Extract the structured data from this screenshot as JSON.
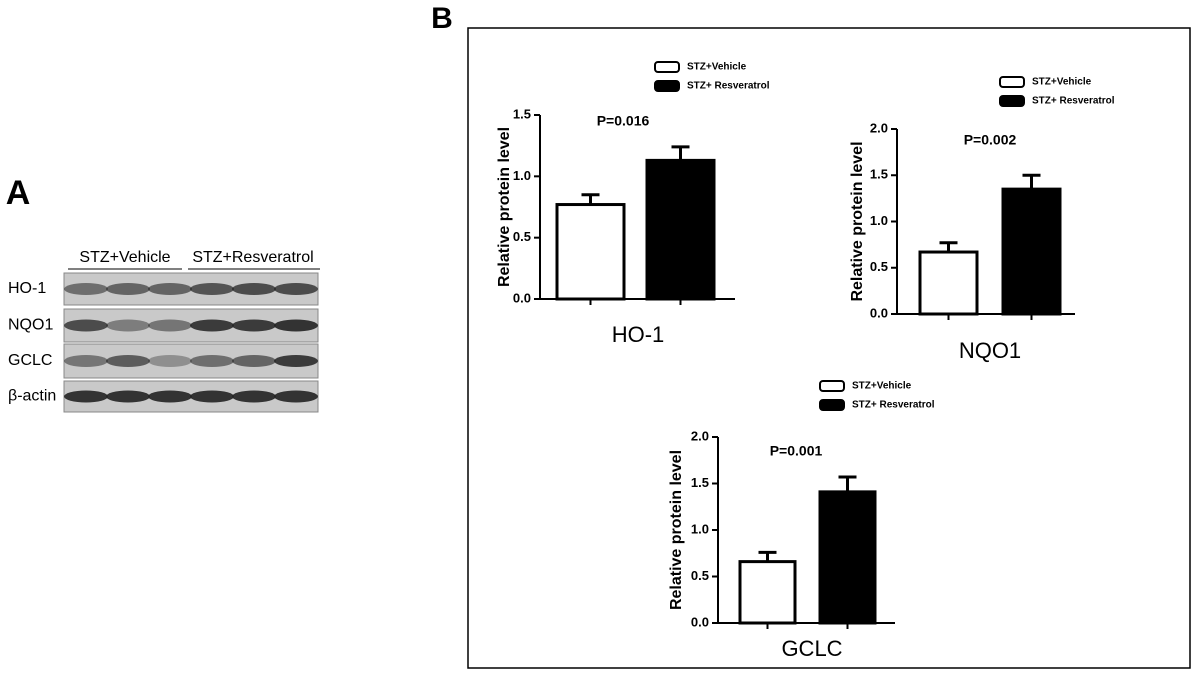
{
  "panel_a": {
    "label": "A",
    "groups": [
      "STZ+Vehicle",
      "STZ+Resveratrol"
    ],
    "rows": [
      "HO-1",
      "NQO1",
      "GCLC",
      "β-actin"
    ]
  },
  "panel_b": {
    "label": "B"
  },
  "chart_data": [
    {
      "type": "bar",
      "xlabel": "HO-1",
      "ylabel": "Relative protein level",
      "annotation": "P=0.016",
      "ylim": [
        0,
        1.5
      ],
      "yticks": [
        {
          "value": 0,
          "label": "0.0"
        },
        0.5,
        {
          "value": 1,
          "label": "1.0"
        },
        1.5
      ],
      "series": [
        {
          "name": "STZ+Vehicle",
          "color": "#ffffff",
          "values": [
            0.77
          ],
          "errors": [
            0.08
          ]
        },
        {
          "name": "STZ+ Resveratrol",
          "color": "#000000",
          "values": [
            1.13
          ],
          "errors": [
            0.11
          ]
        }
      ]
    },
    {
      "type": "bar",
      "xlabel": "NQO1",
      "ylabel": "Relative protein level",
      "annotation": "P=0.002",
      "ylim": [
        0,
        2
      ],
      "yticks": [
        {
          "value": 0,
          "label": "0.0"
        },
        0.5,
        {
          "value": 1,
          "label": "1.0"
        },
        1.5,
        {
          "value": 2,
          "label": "2.0"
        }
      ],
      "series": [
        {
          "name": "STZ+Vehicle",
          "color": "#ffffff",
          "values": [
            0.67
          ],
          "errors": [
            0.1
          ]
        },
        {
          "name": "STZ+ Resveratrol",
          "color": "#000000",
          "values": [
            1.35
          ],
          "errors": [
            0.15
          ]
        }
      ]
    },
    {
      "type": "bar",
      "xlabel": "GCLC",
      "ylabel": "Relative protein level",
      "annotation": "P=0.001",
      "ylim": [
        0,
        2
      ],
      "yticks": [
        {
          "value": 0,
          "label": "0.0"
        },
        0.5,
        {
          "value": 1,
          "label": "1.0"
        },
        1.5,
        {
          "value": 2,
          "label": "2.0"
        }
      ],
      "series": [
        {
          "name": "STZ+Vehicle",
          "color": "#ffffff",
          "values": [
            0.66
          ],
          "errors": [
            0.1
          ]
        },
        {
          "name": "STZ+ Resveratrol",
          "color": "#000000",
          "values": [
            1.41
          ],
          "errors": [
            0.16
          ]
        }
      ]
    }
  ]
}
